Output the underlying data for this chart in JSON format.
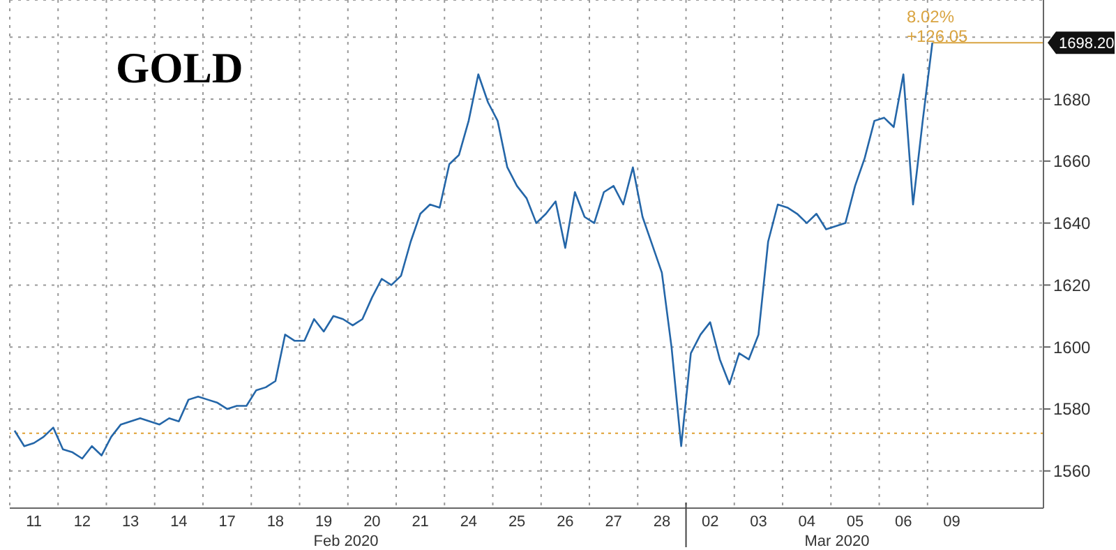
{
  "chart_data": {
    "type": "line",
    "title": "GOLD",
    "categories": [
      null,
      null,
      "11",
      null,
      null,
      null,
      null,
      "12",
      null,
      null,
      null,
      null,
      "13",
      null,
      null,
      null,
      null,
      "14",
      null,
      null,
      null,
      null,
      "17",
      null,
      null,
      null,
      null,
      "18",
      null,
      null,
      null,
      null,
      "19",
      null,
      null,
      null,
      null,
      "20",
      null,
      null,
      null,
      null,
      "21",
      null,
      null,
      null,
      null,
      "24",
      null,
      null,
      null,
      null,
      "25",
      null,
      null,
      null,
      null,
      "26",
      null,
      null,
      null,
      null,
      "27",
      null,
      null,
      null,
      null,
      "28",
      null,
      null,
      null,
      null,
      "02",
      null,
      null,
      null,
      null,
      "03",
      null,
      null,
      null,
      null,
      "04",
      null,
      null,
      null,
      null,
      "05",
      null,
      null,
      null,
      null,
      "06",
      null,
      null,
      null,
      null,
      "09",
      null,
      null,
      null,
      null,
      null,
      null,
      null,
      null,
      null
    ],
    "series": [
      {
        "color": "#2466a8",
        "values": [
          1573,
          1568,
          1569,
          1571,
          1574,
          1567,
          1566,
          1564,
          1568,
          1565,
          1571,
          1575,
          1576,
          1577,
          1576,
          1575,
          1577,
          1576,
          1583,
          1584,
          1583,
          1582,
          1580,
          1581,
          1581,
          1586,
          1587,
          1589,
          1604,
          1602,
          1602,
          1609,
          1605,
          1610,
          1609,
          1607,
          1609,
          1616,
          1622,
          1620,
          1623,
          1634,
          1643,
          1646,
          1645,
          1659,
          1662,
          1673,
          1688,
          1679,
          1673,
          1658,
          1652,
          1648,
          1640,
          1643,
          1647,
          1632,
          1650,
          1642,
          1640,
          1650,
          1652,
          1646,
          1658,
          1642,
          1633,
          1624,
          1600,
          1568,
          1598,
          1604,
          1608,
          1596,
          1588,
          1598,
          1596,
          1604,
          1634,
          1646,
          1645,
          1643,
          1640,
          1643,
          1638,
          1639,
          1640,
          1652,
          1661,
          1673,
          1674,
          1671,
          1688,
          1646,
          1673,
          1698.2,
          null,
          null,
          null,
          null,
          null,
          null,
          null,
          null,
          null,
          null,
          null
        ]
      }
    ],
    "ylim": [
      1548,
      1712
    ],
    "yticks": [
      1560,
      1580,
      1600,
      1620,
      1640,
      1660,
      1680,
      {
        "value": 1700,
        "label": null
      }
    ],
    "grid": true,
    "legend": false,
    "ref_lines": [
      {
        "axis": "y",
        "value": 1572.15,
        "color": "#e0a030",
        "line_style": "dotted"
      },
      {
        "axis": "y",
        "value": 1698.2,
        "label": "1698.20",
        "color": "#d9a441"
      }
    ],
    "annotations": [
      "8.02%",
      "+126.05",
      "Feb 2020",
      "Mar 2020"
    ]
  }
}
